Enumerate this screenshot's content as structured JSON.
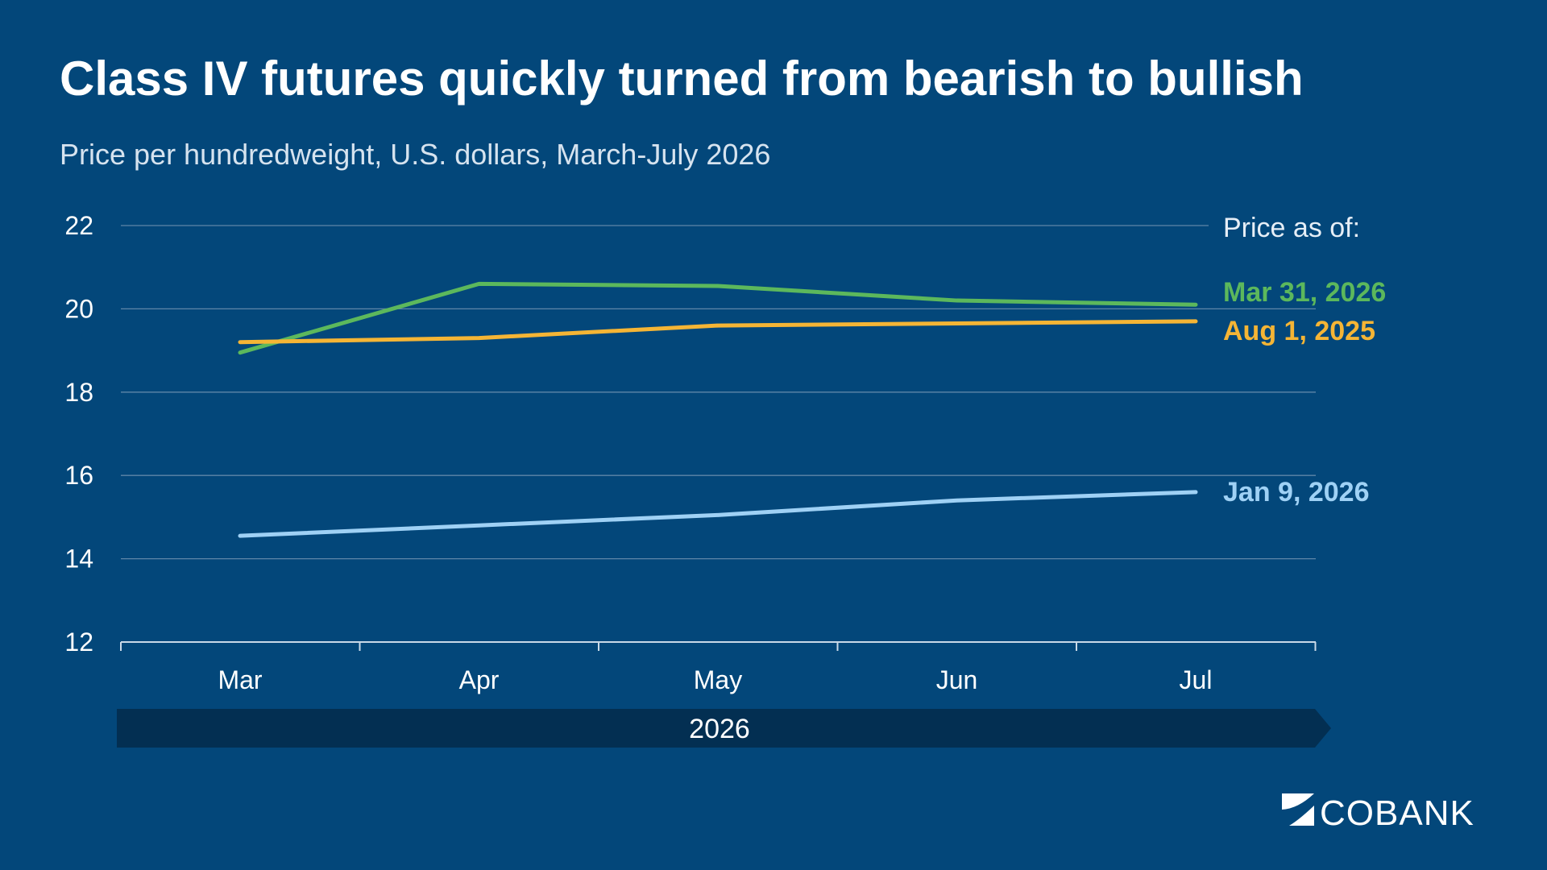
{
  "chart_data": {
    "type": "line",
    "title": "Class IV futures quickly turned from bearish to bullish",
    "subtitle": "Price per hundredweight, U.S. dollars, March-July 2026",
    "categories": [
      "Mar",
      "Apr",
      "May",
      "Jun",
      "Jul"
    ],
    "x_group_label": "2026",
    "ylim": [
      12,
      22
    ],
    "yticks": [
      12,
      14,
      16,
      18,
      20,
      22
    ],
    "grid": true,
    "legend_title": "Price as of:",
    "legend_placement": "right",
    "series": [
      {
        "name": "Mar 31, 2026",
        "color": "#5cb85c",
        "values": [
          18.95,
          20.6,
          20.55,
          20.2,
          20.1
        ]
      },
      {
        "name": "Aug 1, 2025",
        "color": "#f5b535",
        "values": [
          19.2,
          19.3,
          19.6,
          19.65,
          19.7
        ]
      },
      {
        "name": "Jan 9, 2026",
        "color": "#9fd1f5",
        "values": [
          14.55,
          14.8,
          15.05,
          15.4,
          15.6
        ]
      }
    ]
  },
  "brand": {
    "logo_text": "COBANK",
    "background_color": "#03477a",
    "band_color": "#032f52"
  }
}
